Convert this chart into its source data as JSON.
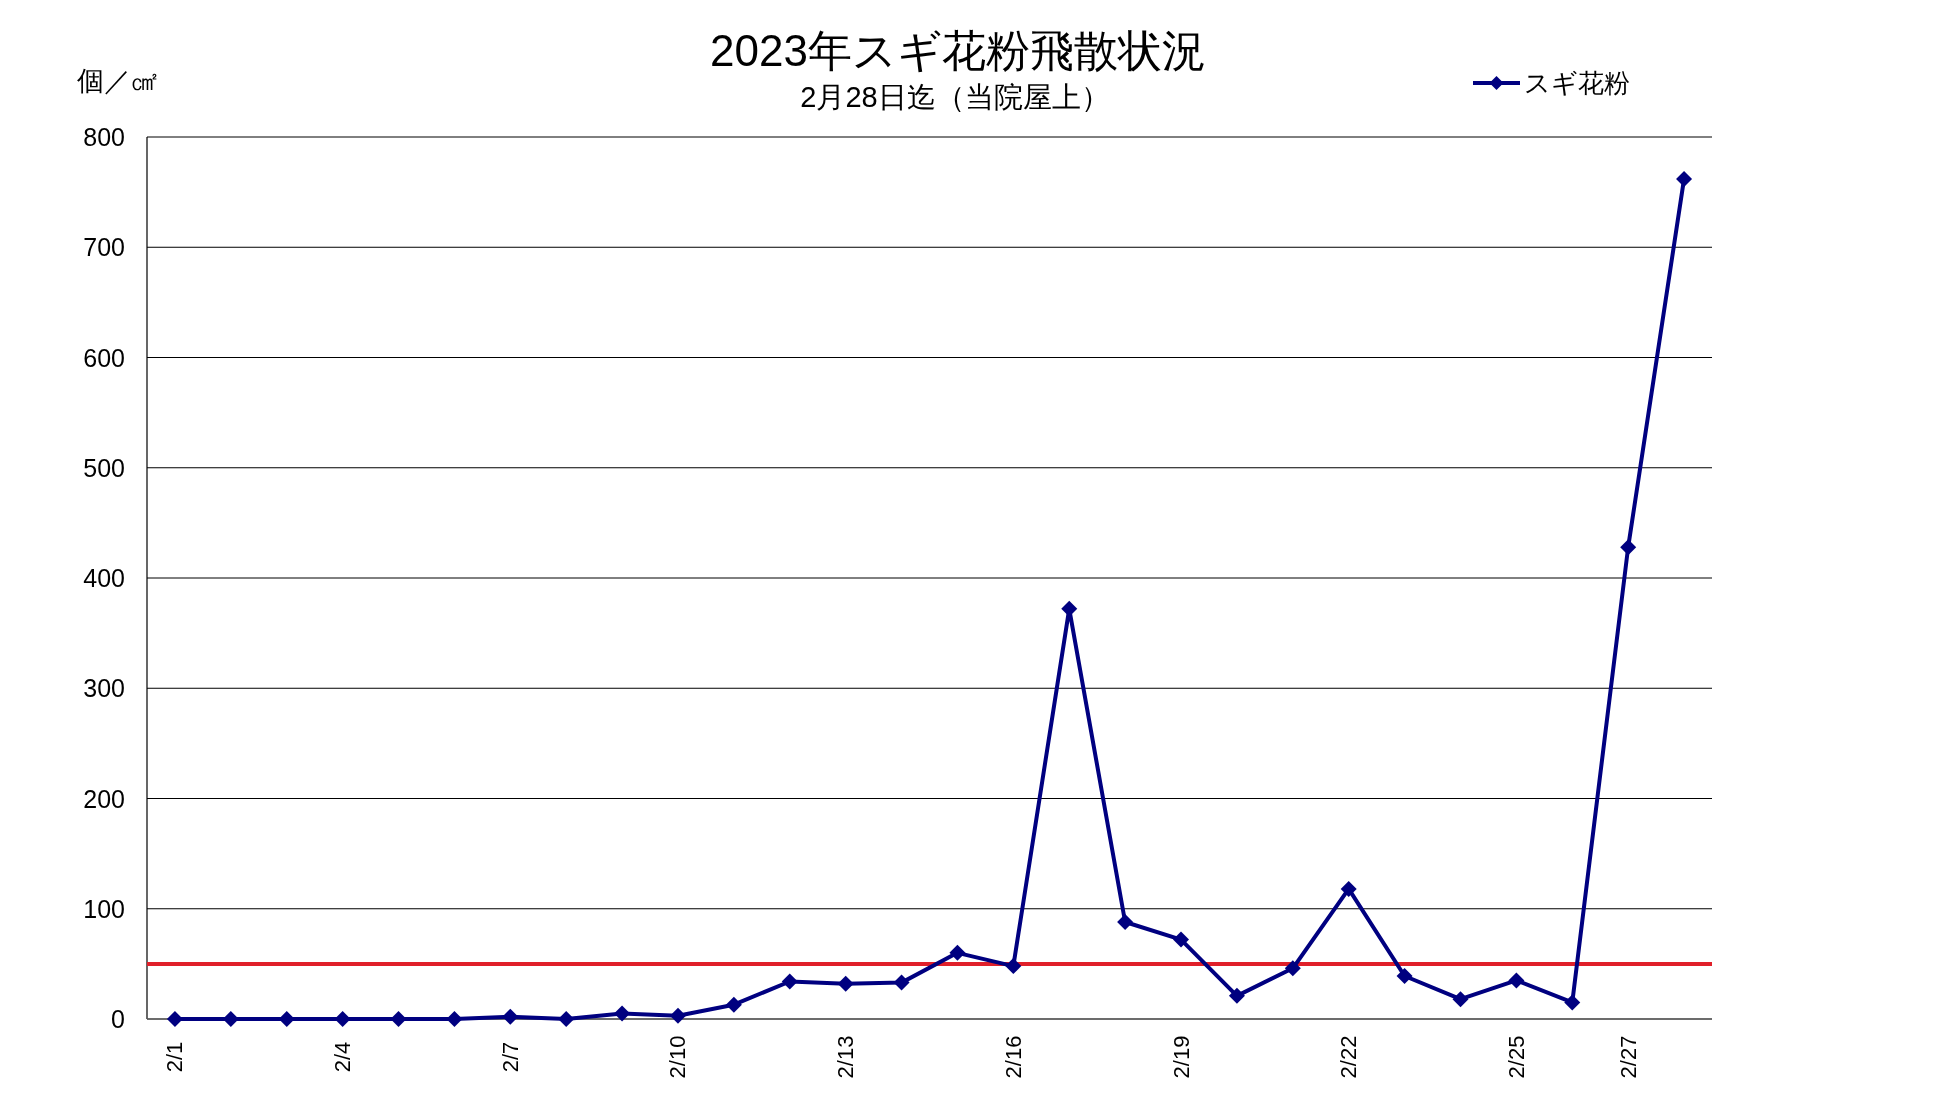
{
  "chart_data": {
    "type": "line",
    "title": "2023年スギ花粉飛散状況",
    "subtitle": "2月28日迄（当院屋上）",
    "ylabel": "個／㎠",
    "categories": [
      "2/1",
      null,
      null,
      "2/4",
      null,
      null,
      "2/7",
      null,
      null,
      "2/10",
      null,
      null,
      "2/13",
      null,
      null,
      "2/16",
      null,
      null,
      "2/19",
      null,
      null,
      "2/22",
      null,
      null,
      "2/25",
      null,
      "2/27",
      null
    ],
    "series": [
      {
        "name": "スギ花粉",
        "color": "#000080",
        "values": [
          0,
          0,
          0,
          0,
          0,
          0,
          2,
          0,
          5,
          3,
          13,
          34,
          32,
          33,
          60,
          48,
          372,
          88,
          72,
          21,
          46,
          118,
          39,
          18,
          35,
          15,
          428,
          762
        ]
      }
    ],
    "ylim": [
      0,
      800
    ],
    "yticks": [
      0,
      100,
      200,
      300,
      400,
      500,
      600,
      700,
      800
    ],
    "grid": "y",
    "legend": "top right",
    "marker": "diamond",
    "ref_lines": [
      {
        "axis": "y",
        "value": 50,
        "color": "#e0202a"
      }
    ]
  }
}
